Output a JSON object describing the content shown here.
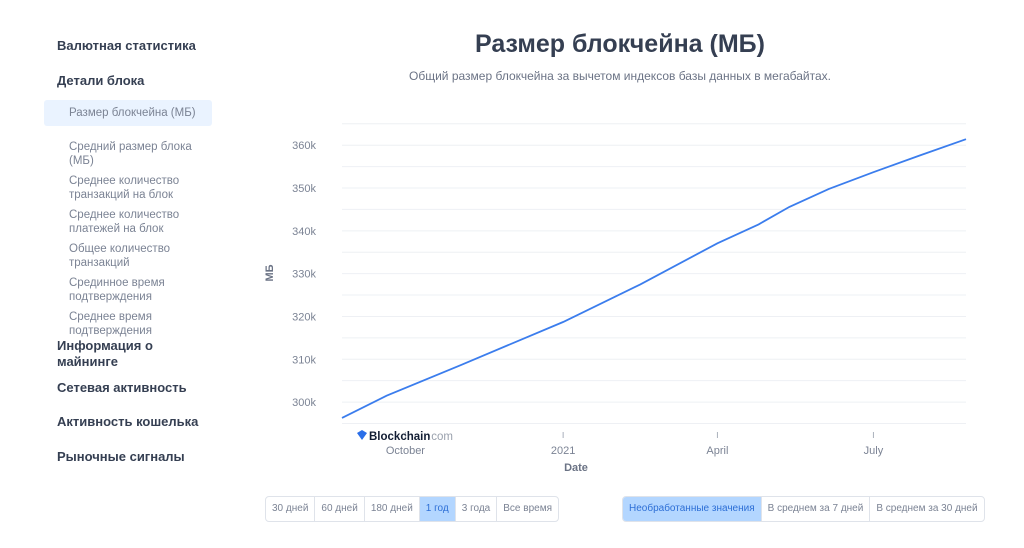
{
  "sidebar": {
    "sections": [
      {
        "label": "Валютная статистика",
        "items": []
      },
      {
        "label": "Детали блока",
        "items": [
          "Размер блокчейна (МБ)",
          "Средний размер блока (МБ)",
          "Среднее количество транзакций на блок",
          "Среднее количество платежей на блок",
          "Общее количество транзакций",
          "Срединное время подтверждения",
          "Среднее время подтверждения"
        ]
      },
      {
        "label": "Информация о майнинге",
        "items": []
      },
      {
        "label": "Сетевая активность",
        "items": []
      },
      {
        "label": "Активность кошелька",
        "items": []
      },
      {
        "label": "Рыночные сигналы",
        "items": []
      }
    ],
    "active_item": "Размер блокчейна (МБ)"
  },
  "watermark": {
    "brand": "Blockchain",
    "suffix": ".com"
  },
  "range_buttons": [
    "30 дней",
    "60 дней",
    "180 дней",
    "1 год",
    "3 года",
    "Все время"
  ],
  "range_selected": "1 год",
  "avg_buttons": [
    "Необработанные значения",
    "В среднем за 7 дней",
    "В среднем за 30 дней"
  ],
  "avg_selected": "Необработанные значения",
  "chart_data": {
    "type": "line",
    "title": "Размер блокчейна (МБ)",
    "subtitle": "Общий размер блокчейна за вычетом индексов базы данных в мегабайтах.",
    "xlabel": "Date",
    "ylabel": "МБ",
    "xlim": [
      "2020-08-25",
      "2021-08-24"
    ],
    "ylim": [
      295000,
      365000
    ],
    "x_ticks": [
      {
        "date": "2020-10-01",
        "label": "October"
      },
      {
        "date": "2021-01-01",
        "label": "2021"
      },
      {
        "date": "2021-04-01",
        "label": "April"
      },
      {
        "date": "2021-07-01",
        "label": "July"
      }
    ],
    "y_ticks": [
      {
        "v": 300000,
        "label": "300k"
      },
      {
        "v": 310000,
        "label": "310k"
      },
      {
        "v": 320000,
        "label": "320k"
      },
      {
        "v": 330000,
        "label": "330k"
      },
      {
        "v": 340000,
        "label": "340k"
      },
      {
        "v": 350000,
        "label": "350k"
      },
      {
        "v": 360000,
        "label": "360k"
      }
    ],
    "grid": true,
    "color": "#3b7ded",
    "points": [
      [
        "2020-08-25",
        296300
      ],
      [
        "2020-09-20",
        301500
      ],
      [
        "2020-11-02",
        308600
      ],
      [
        "2021-01-01",
        318700
      ],
      [
        "2021-02-15",
        327500
      ],
      [
        "2021-04-01",
        337100
      ],
      [
        "2021-04-25",
        341500
      ],
      [
        "2021-05-13",
        345600
      ],
      [
        "2021-06-05",
        349800
      ],
      [
        "2021-07-01",
        353700
      ],
      [
        "2021-07-28",
        357600
      ],
      [
        "2021-08-24",
        361400
      ]
    ]
  }
}
